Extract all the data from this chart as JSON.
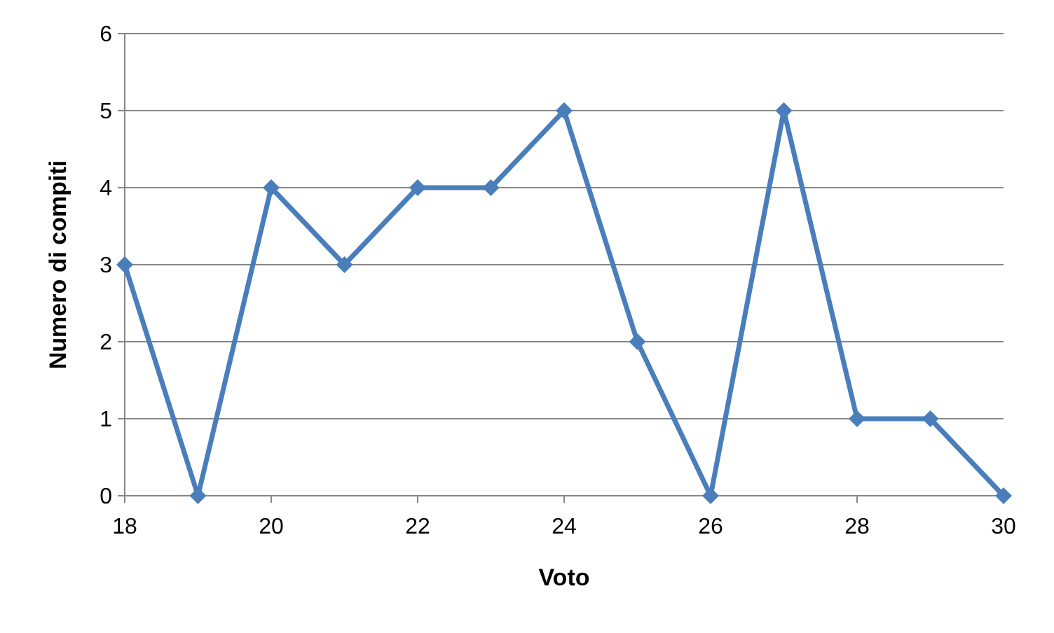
{
  "chart_data": {
    "type": "line",
    "xlabel": "Voto",
    "ylabel": "Numero di compiti",
    "x": [
      18,
      19,
      20,
      21,
      22,
      23,
      24,
      25,
      26,
      27,
      28,
      29,
      30
    ],
    "series": [
      {
        "color": "#4a7ebb",
        "values": [
          3,
          0,
          4,
          3,
          4,
          4,
          5,
          2,
          0,
          5,
          1,
          1,
          0
        ]
      }
    ],
    "xlim": [
      18,
      30
    ],
    "xticks": [
      18,
      20,
      22,
      24,
      26,
      28,
      30
    ],
    "ylim": [
      0,
      6
    ],
    "yticks": [
      0,
      1,
      2,
      3,
      4,
      5,
      6
    ],
    "grid": "y",
    "marker": "diamond",
    "line_style": "solid"
  }
}
